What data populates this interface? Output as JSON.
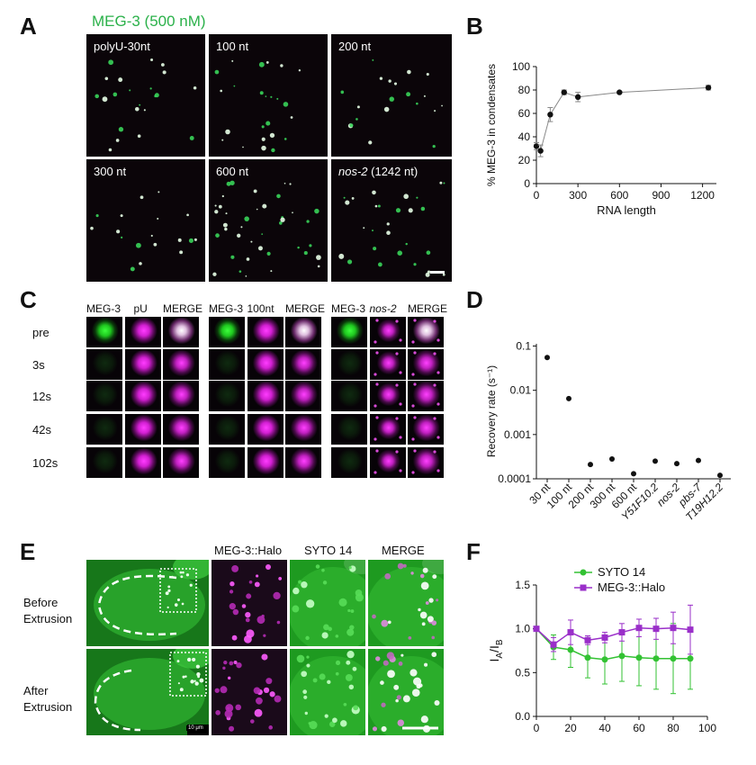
{
  "panelA": {
    "letter": "A",
    "title": "MEG-3 (500 nM)",
    "images": [
      {
        "label": "polyU-30nt",
        "italic": false
      },
      {
        "label": "100 nt",
        "italic": false
      },
      {
        "label": "200 nt",
        "italic": false
      },
      {
        "label": "300 nt",
        "italic": false
      },
      {
        "label": "600 nt",
        "italic": false
      },
      {
        "label_italic": "nos-2",
        "label_rest": " (1242 nt)",
        "italic": true
      }
    ]
  },
  "panelB": {
    "letter": "B",
    "chart_data": {
      "type": "line",
      "xlabel": "RNA length",
      "ylabel": "% MEG-3 in condensates",
      "xlim": [
        0,
        1300
      ],
      "ylim": [
        0,
        100
      ],
      "xticks": [
        "0",
        "300",
        "600",
        "900",
        "1200"
      ],
      "yticks": [
        "0",
        "20",
        "40",
        "60",
        "80",
        "100"
      ],
      "series": [
        {
          "x": [
            0,
            30,
            100,
            200,
            300,
            600,
            1242
          ],
          "y": [
            32,
            28,
            59,
            78,
            74,
            78,
            82
          ],
          "err": [
            3,
            5,
            6,
            2,
            4,
            1,
            2
          ]
        }
      ]
    }
  },
  "panelC": {
    "letter": "C",
    "groups": [
      {
        "labels": [
          "MEG-3",
          "pU",
          "MERGE"
        ],
        "italic": [
          false,
          false,
          false
        ]
      },
      {
        "labels": [
          "MEG-3",
          "100nt",
          "MERGE"
        ],
        "italic": [
          false,
          false,
          false
        ]
      },
      {
        "labels": [
          "MEG-3",
          "nos-2",
          "MERGE"
        ],
        "italic": [
          false,
          true,
          false
        ]
      }
    ],
    "times": [
      "pre",
      "3s",
      "12s",
      "42s",
      "102s"
    ]
  },
  "panelD": {
    "letter": "D",
    "chart_data": {
      "type": "scatter",
      "ylabel": "Recovery rate (s⁻¹)",
      "yscale": "log",
      "yticks": [
        "0.1",
        "0.01",
        "0.001",
        "0.0001"
      ],
      "categories": [
        "30 nt",
        "100 nt",
        "200 nt",
        "300 nt",
        "600 nt",
        "Y51F10.2",
        "nos-2",
        "pbs-7",
        "T19H12.2"
      ],
      "italic": [
        false,
        false,
        false,
        false,
        false,
        true,
        true,
        true,
        true
      ],
      "values": [
        0.055,
        0.0065,
        0.00021,
        0.00028,
        0.00013,
        0.00025,
        0.00022,
        0.00026,
        0.00012
      ]
    }
  },
  "panelE": {
    "letter": "E",
    "headers": [
      "MEG-3::Halo",
      "SYTO 14",
      "MERGE"
    ],
    "rows": [
      {
        "line1": "Before",
        "line2": "Extrusion"
      },
      {
        "line1": "After",
        "line2": "Extrusion"
      }
    ],
    "scalebar": "10 μm"
  },
  "panelF": {
    "letter": "F",
    "chart_data": {
      "type": "line",
      "ylabel_main": "I",
      "ylabel_sub1": "A",
      "ylabel_slash": "/I",
      "ylabel_sub2": "B",
      "xlim": [
        0,
        100
      ],
      "ylim": [
        0,
        1.5
      ],
      "xticks": [
        "0",
        "20",
        "40",
        "60",
        "80",
        "100"
      ],
      "yticks": [
        "0.0",
        "0.5",
        "1.0",
        "1.5"
      ],
      "series": [
        {
          "name": "SYTO 14",
          "color": "#33c233",
          "marker": "circle",
          "x": [
            0,
            10,
            20,
            30,
            40,
            50,
            60,
            70,
            80,
            90
          ],
          "y": [
            1.0,
            0.79,
            0.76,
            0.67,
            0.65,
            0.69,
            0.67,
            0.66,
            0.66,
            0.66
          ],
          "err": [
            0.02,
            0.14,
            0.2,
            0.23,
            0.28,
            0.29,
            0.32,
            0.35,
            0.4,
            0.35
          ]
        },
        {
          "name": "MEG-3::Halo",
          "color": "#9a2fc9",
          "marker": "square",
          "x": [
            0,
            10,
            20,
            30,
            40,
            50,
            60,
            70,
            80,
            90
          ],
          "y": [
            1.0,
            0.82,
            0.96,
            0.87,
            0.9,
            0.96,
            1.01,
            1.0,
            1.01,
            0.99
          ],
          "err": [
            0.02,
            0.08,
            0.14,
            0.05,
            0.06,
            0.1,
            0.1,
            0.12,
            0.18,
            0.28
          ]
        }
      ]
    }
  }
}
